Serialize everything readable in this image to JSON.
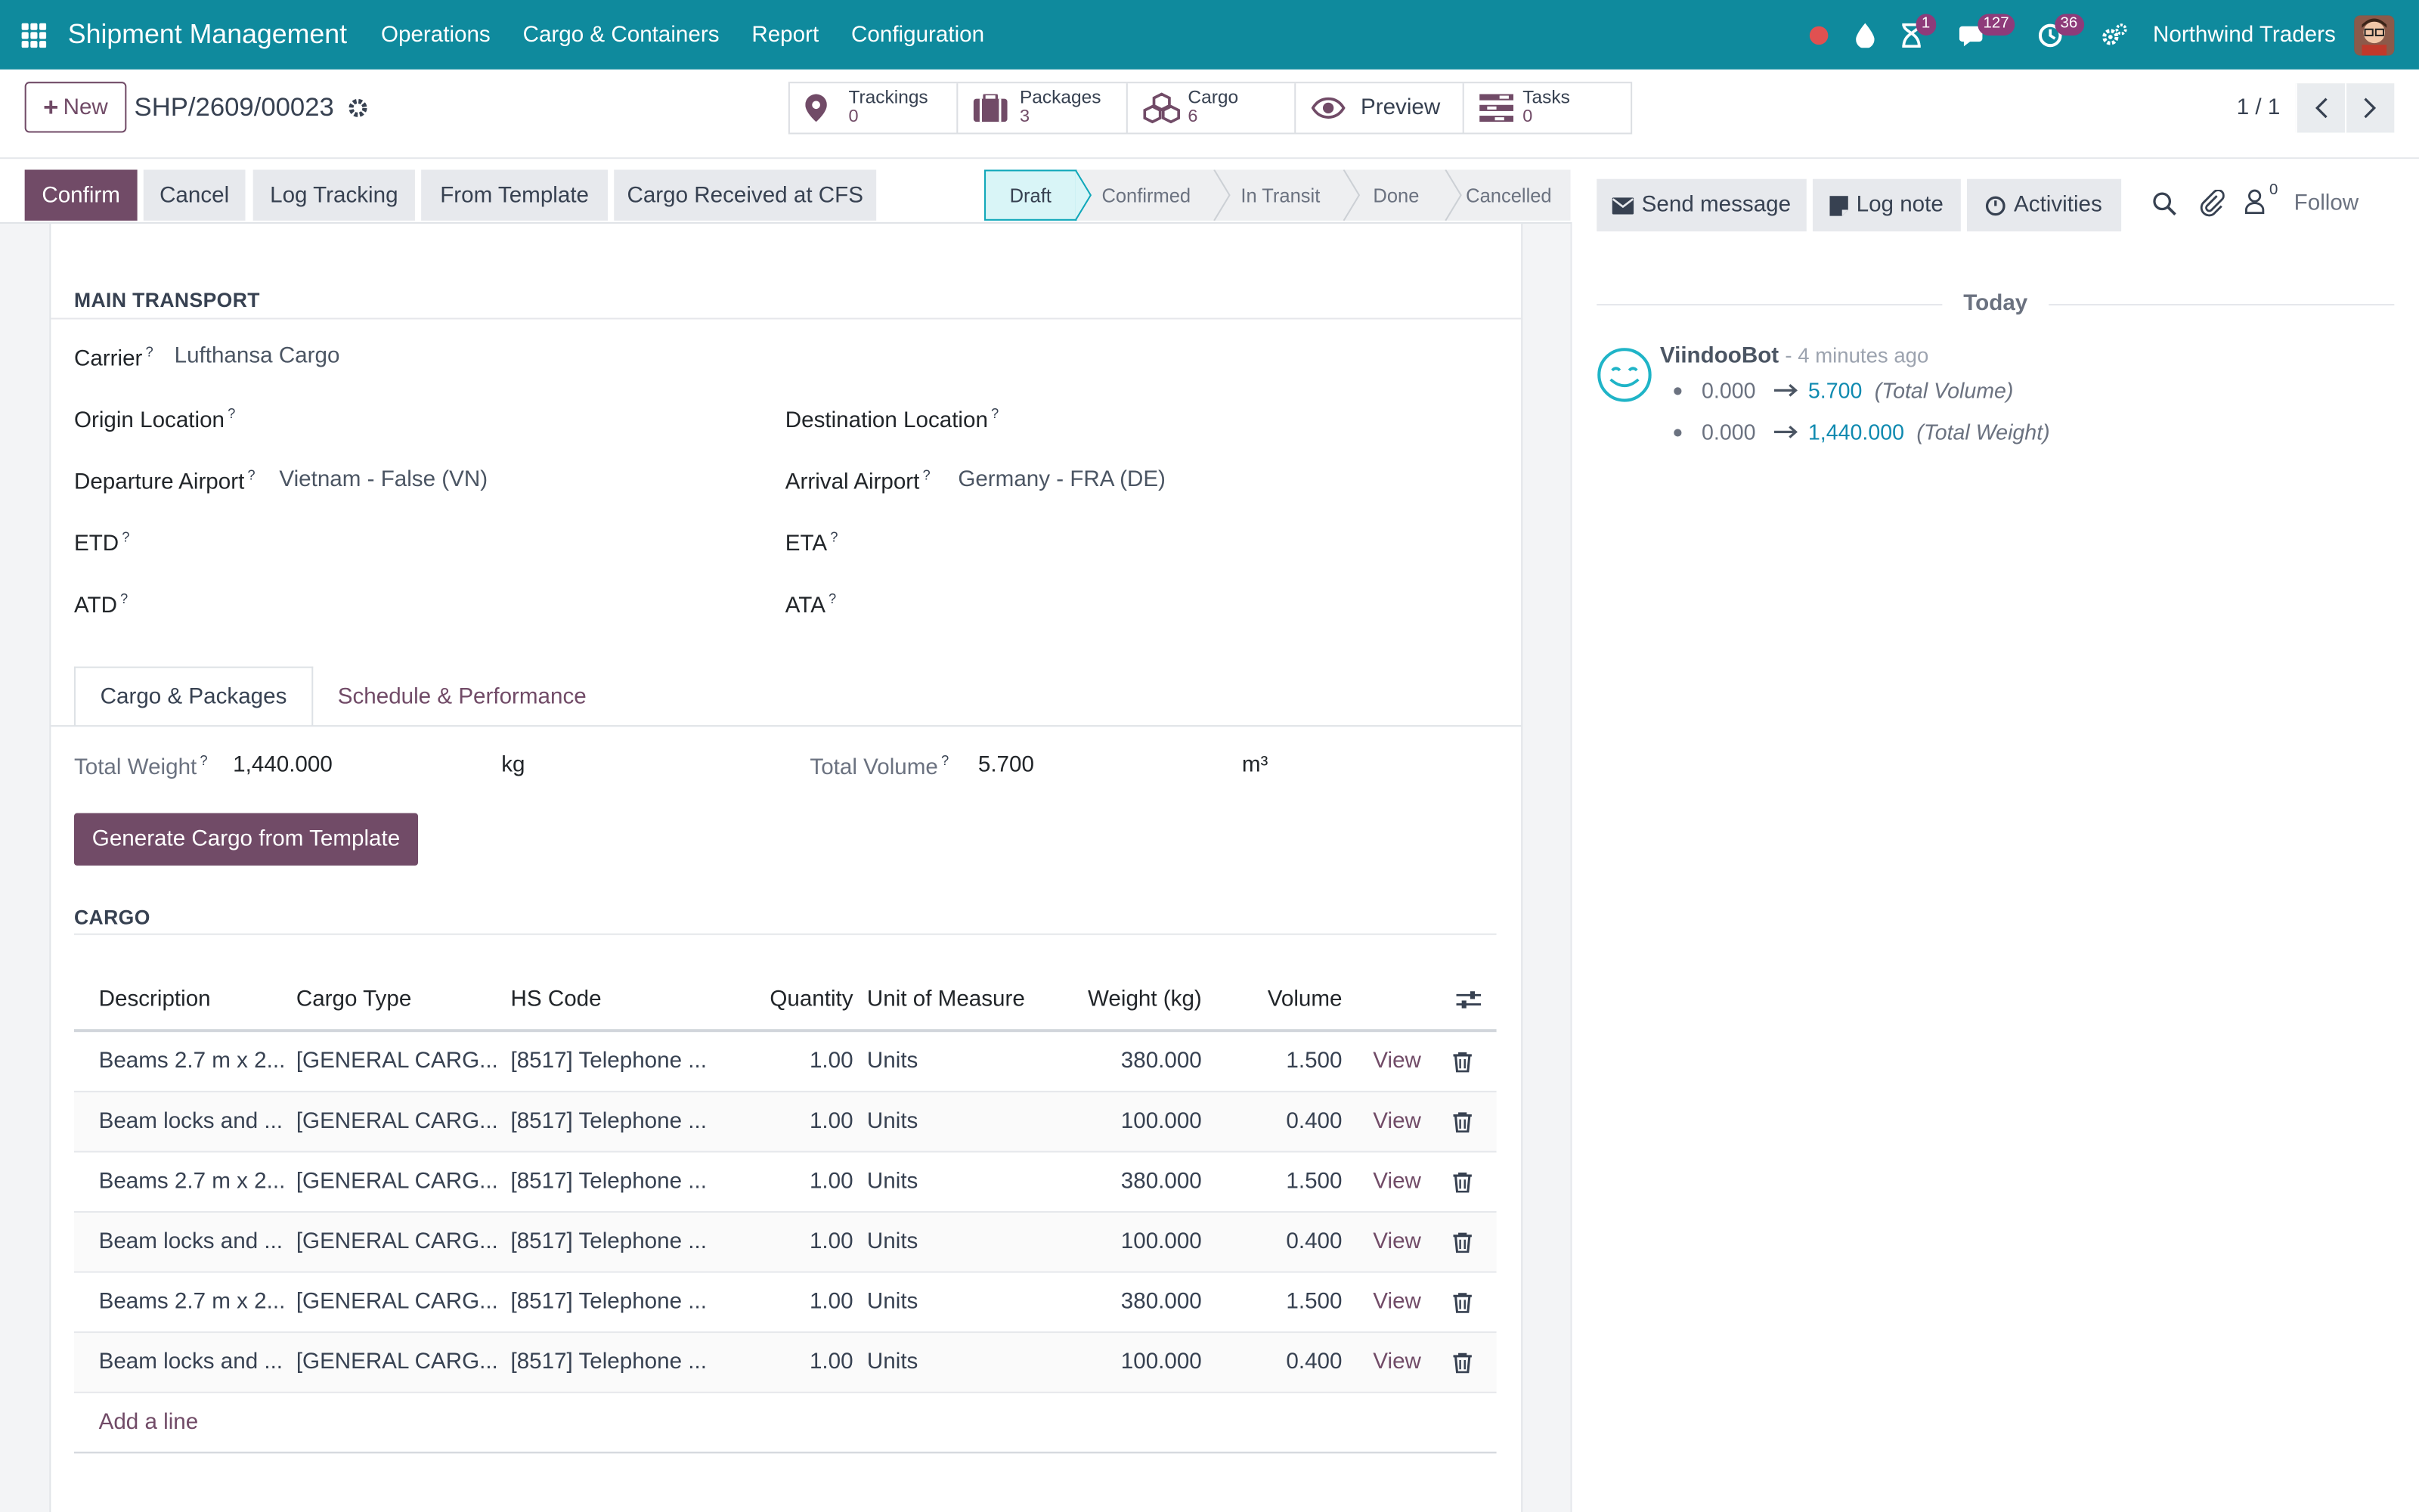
{
  "navbar": {
    "brand": "Shipment Management",
    "menus": [
      "Operations",
      "Cargo & Containers",
      "Report",
      "Configuration"
    ],
    "activity_badge": "1",
    "messages_badge": "127",
    "clock_badge": "36",
    "company": "Northwind Traders",
    "colors": {
      "bar": "#0f8a9d",
      "badge": "#8e3b7a",
      "record_dot": "#e05151"
    }
  },
  "control": {
    "new_label": "New",
    "record_name": "SHP/2609/00023",
    "smart_buttons": [
      {
        "label": "Trackings",
        "value": "0",
        "icon": "location-pin-icon"
      },
      {
        "label": "Packages",
        "value": "3",
        "icon": "briefcase-icon"
      },
      {
        "label": "Cargo",
        "value": "6",
        "icon": "cubes-icon"
      },
      {
        "label": "Preview",
        "icon": "eye-icon"
      },
      {
        "label": "Tasks",
        "value": "0",
        "icon": "tasks-icon"
      }
    ],
    "pager": "1 / 1"
  },
  "statusbar": {
    "buttons": [
      "Confirm",
      "Cancel",
      "Log Tracking",
      "From Template",
      "Cargo Received at CFS"
    ],
    "stages": [
      "Draft",
      "Confirmed",
      "In Transit",
      "Done",
      "Cancelled"
    ],
    "active_stage": "Draft"
  },
  "form": {
    "main_transport_title": "MAIN TRANSPORT",
    "carrier_label": "Carrier",
    "carrier_value": "Lufthansa Cargo",
    "origin_label": "Origin Location",
    "destination_label": "Destination Location",
    "departure_airport_label": "Departure Airport",
    "departure_airport_value": "Vietnam - False (VN)",
    "arrival_airport_label": "Arrival Airport",
    "arrival_airport_value": "Germany - FRA (DE)",
    "etd_label": "ETD",
    "eta_label": "ETA",
    "atd_label": "ATD",
    "ata_label": "ATA",
    "help_mark": "?",
    "tabs": [
      "Cargo & Packages",
      "Schedule & Performance"
    ],
    "total_weight_label": "Total Weight",
    "total_weight_value": "1,440.000",
    "total_weight_unit": "kg",
    "total_volume_label": "Total Volume",
    "total_volume_value": "5.700",
    "total_volume_unit": "m³",
    "generate_button": "Generate Cargo from Template",
    "cargo_title": "CARGO"
  },
  "table": {
    "headers": [
      "Description",
      "Cargo Type",
      "HS Code",
      "Quantity",
      "Unit of Measure",
      "Weight (kg)",
      "Volume"
    ],
    "rows": [
      {
        "description": "Beams 2.7 m x 2...",
        "cargo_type": "[GENERAL CARG...",
        "hs_code": "[8517] Telephone ...",
        "quantity": "1.00",
        "uom": "Units",
        "weight": "380.000",
        "volume": "1.500",
        "view": "View"
      },
      {
        "description": "Beam locks and ...",
        "cargo_type": "[GENERAL CARG...",
        "hs_code": "[8517] Telephone ...",
        "quantity": "1.00",
        "uom": "Units",
        "weight": "100.000",
        "volume": "0.400",
        "view": "View"
      },
      {
        "description": "Beams 2.7 m x 2...",
        "cargo_type": "[GENERAL CARG...",
        "hs_code": "[8517] Telephone ...",
        "quantity": "1.00",
        "uom": "Units",
        "weight": "380.000",
        "volume": "1.500",
        "view": "View"
      },
      {
        "description": "Beam locks and ...",
        "cargo_type": "[GENERAL CARG...",
        "hs_code": "[8517] Telephone ...",
        "quantity": "1.00",
        "uom": "Units",
        "weight": "100.000",
        "volume": "0.400",
        "view": "View"
      },
      {
        "description": "Beams 2.7 m x 2...",
        "cargo_type": "[GENERAL CARG...",
        "hs_code": "[8517] Telephone ...",
        "quantity": "1.00",
        "uom": "Units",
        "weight": "380.000",
        "volume": "1.500",
        "view": "View"
      },
      {
        "description": "Beam locks and ...",
        "cargo_type": "[GENERAL CARG...",
        "hs_code": "[8517] Telephone ...",
        "quantity": "1.00",
        "uom": "Units",
        "weight": "100.000",
        "volume": "0.400",
        "view": "View"
      }
    ],
    "add_line": "Add a line"
  },
  "chatter": {
    "send_message": "Send message",
    "log_note": "Log note",
    "activities": "Activities",
    "followers_count": "0",
    "follow": "Follow",
    "date_separator": "Today",
    "author": "ViindooBot",
    "time": "- 4 minutes ago",
    "tracking": [
      {
        "old": "0.000",
        "new": "5.700",
        "field": "(Total Volume)"
      },
      {
        "old": "0.000",
        "new": "1,440.000",
        "field": "(Total Weight)"
      }
    ]
  },
  "colors": {
    "primary": "#714b67",
    "teal": "#0f8a9d",
    "link_blue": "#0f8ab0"
  }
}
